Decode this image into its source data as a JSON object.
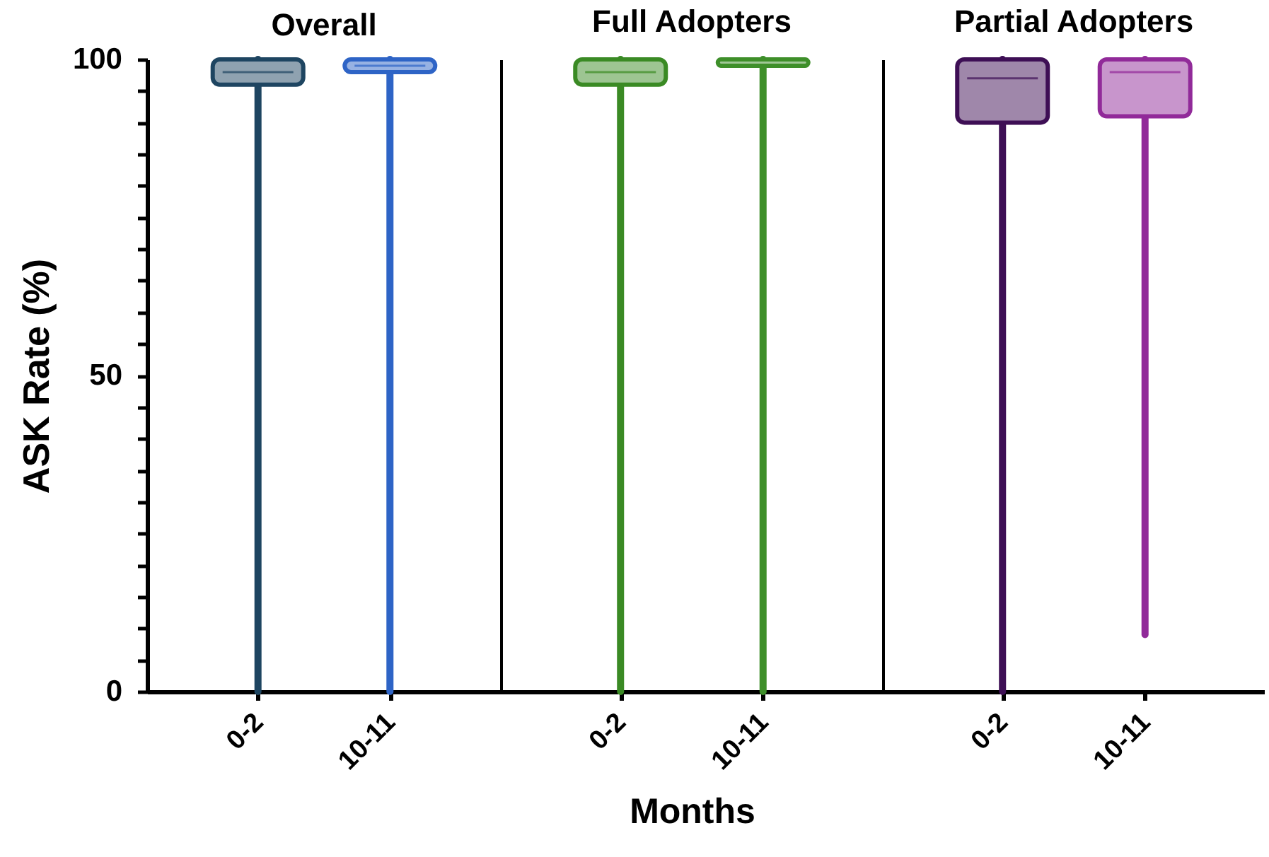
{
  "chart_data": [
    {
      "type": "box",
      "title": "Overall",
      "categories": [
        "0-2",
        "10-11"
      ],
      "colors": [
        "#1e4561",
        "#2e64c6"
      ],
      "boxes": [
        {
          "low": 0,
          "q1": 96,
          "median": 98,
          "q3": 100,
          "high": 100
        },
        {
          "low": 0,
          "q1": 98,
          "median": 99,
          "q3": 100,
          "high": 100
        }
      ],
      "ylabel": "ASK Rate (%)",
      "ylim": [
        0,
        100
      ],
      "yticks": [
        0,
        {
          "value": 5,
          "label": null
        },
        {
          "value": 10,
          "label": null
        },
        {
          "value": 15,
          "label": null
        },
        {
          "value": 20,
          "label": null
        },
        {
          "value": 25,
          "label": null
        },
        {
          "value": 30,
          "label": null
        },
        {
          "value": 35,
          "label": null
        },
        {
          "value": 40,
          "label": null
        },
        {
          "value": 45,
          "label": null
        },
        50,
        {
          "value": 55,
          "label": null
        },
        {
          "value": 60,
          "label": null
        },
        {
          "value": 65,
          "label": null
        },
        {
          "value": 70,
          "label": null
        },
        {
          "value": 75,
          "label": null
        },
        {
          "value": 80,
          "label": null
        },
        {
          "value": 85,
          "label": null
        },
        {
          "value": 90,
          "label": null
        },
        {
          "value": 95,
          "label": null
        },
        100
      ]
    },
    {
      "type": "box",
      "title": "Full Adopters",
      "categories": [
        "0-2",
        "10-11"
      ],
      "colors": [
        "#3a8a24",
        "#3e8f2a"
      ],
      "boxes": [
        {
          "low": 0,
          "q1": 96,
          "median": 98,
          "q3": 100,
          "high": 100
        },
        {
          "low": 0,
          "q1": 99,
          "median": 100,
          "q3": 100,
          "high": 100
        }
      ],
      "xlabel": "Months",
      "ylim": [
        0,
        100
      ],
      "tick_labels": "x"
    },
    {
      "type": "box",
      "title": "Partial Adopters",
      "categories": [
        "0-2",
        "10-11"
      ],
      "colors": [
        "#3e0f55",
        "#912a99"
      ],
      "boxes": [
        {
          "low": 0,
          "q1": 90,
          "median": 97,
          "q3": 100,
          "high": 100
        },
        {
          "low": 9,
          "q1": 91,
          "median": 98,
          "q3": 100,
          "high": 100
        }
      ],
      "ylabel": null,
      "ylim": [
        0,
        100
      ],
      "tick_labels": "x"
    }
  ]
}
